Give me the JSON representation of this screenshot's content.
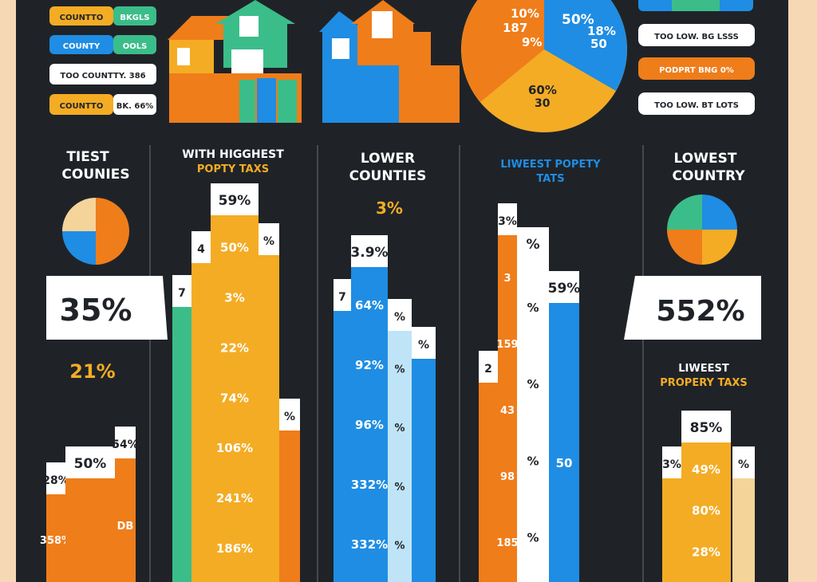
{
  "colors": {
    "background": "#1f2328",
    "frame": "#f6d9b4",
    "orange": "#ef7d1a",
    "yellow": "#f4ac24",
    "blue": "#1f8de3",
    "light_blue": "#bfe4f7",
    "teal": "#3bbd8a",
    "cream": "#f5d49a",
    "white": "#ffffff",
    "dark_text": "#1f2328"
  },
  "legend_left": [
    {
      "tag": "COUNTTO",
      "label": "BKGLS",
      "tag_color": "#f4ac24"
    },
    {
      "tag": "COUNTY",
      "label": "OOLS",
      "tag_color": "#1f8de3"
    },
    {
      "tag": "",
      "label": "TOO COUNTTY. 386",
      "tag_color": "#ffffff"
    },
    {
      "tag": "COUNTTO",
      "label": "BK. 66%",
      "tag_color": "#f4ac24"
    }
  ],
  "legend_right": [
    {
      "label": "TOO LOW. BG LSSS",
      "fill": "#ffffff"
    },
    {
      "label": "PODPRT BNG 0%",
      "fill": "#ef7d1a"
    },
    {
      "label": "TOO LOW. BT LOTS",
      "fill": "#ffffff"
    }
  ],
  "pie_labels": [
    "10%",
    "187",
    "9%",
    "50%",
    "18%",
    "50",
    "60%",
    "30"
  ],
  "chart_data": [
    {
      "type": "bar",
      "title": "TIEST COUNIES",
      "callout": "35%",
      "accent_label": "21%",
      "pie_values": [
        25,
        25,
        25,
        25
      ],
      "bars": [
        {
          "labels": [
            "28%",
            "358%"
          ],
          "color": "#ef7d1a",
          "value": 30
        },
        {
          "labels": [
            "50%"
          ],
          "color": "#ef7d1a",
          "value": 34
        },
        {
          "labels": [
            "54%",
            "DB"
          ],
          "color": "#ef7d1a",
          "value": 39
        }
      ]
    },
    {
      "type": "bar",
      "title": "WITH HIGGHEST",
      "subtitle": "POPTY TAXS",
      "bars": [
        {
          "labels": [
            "7"
          ],
          "color": "#3bbd8a",
          "value": 77
        },
        {
          "labels": [
            "4"
          ],
          "color": "#f4ac24",
          "value": 88
        },
        {
          "labels": [
            "59%",
            "50%",
            "3%",
            "22%",
            "74%",
            "106%",
            "241%",
            "186%"
          ],
          "color": "#f4ac24",
          "value": 100
        },
        {
          "labels": [
            "%"
          ],
          "color": "#f4ac24",
          "value": 90
        },
        {
          "labels": [
            "%"
          ],
          "color": "#ef7d1a",
          "value": 46
        }
      ]
    },
    {
      "type": "bar",
      "title": "LOWER COUNTIES",
      "accent_label": "3%",
      "bars": [
        {
          "labels": [
            "7"
          ],
          "color": "#1f8de3",
          "value": 76
        },
        {
          "labels": [
            "3.9%",
            "64%",
            "92%",
            "96%",
            "332%",
            "332%"
          ],
          "color": "#1f8de3",
          "value": 87
        },
        {
          "labels": [
            "%",
            "%",
            "%",
            "%",
            "%"
          ],
          "color": "#bfe4f7",
          "value": 71
        },
        {
          "labels": [
            "%"
          ],
          "color": "#1f8de3",
          "value": 64
        }
      ]
    },
    {
      "type": "bar",
      "title": "LIWEEST POPETY TATS",
      "bars": [
        {
          "labels": [
            "2"
          ],
          "color": "#ef7d1a",
          "value": 58
        },
        {
          "labels": [
            "3%",
            "3",
            "159",
            "43",
            "98",
            "185"
          ],
          "color": "#ef7d1a",
          "value": 95
        },
        {
          "labels": [
            "%",
            "%",
            "%",
            "%",
            "%"
          ],
          "color": "#ffffff",
          "value": 89
        },
        {
          "labels": [
            "59%",
            "50"
          ],
          "color": "#1f8de3",
          "value": 78
        }
      ]
    },
    {
      "type": "bar",
      "title": "LOWEST COUNTRY",
      "callout": "552%",
      "subtitle": "LIWEEST PROPERY TAXS",
      "pie_values": [
        25,
        25,
        25,
        25
      ],
      "bars": [
        {
          "labels": [
            "3%"
          ],
          "color": "#f4ac24",
          "value": 34
        },
        {
          "labels": [
            "85%",
            "49%",
            "80%",
            "28%"
          ],
          "color": "#f4ac24",
          "value": 43
        },
        {
          "labels": [
            "%"
          ],
          "color": "#f5d49a",
          "value": 34
        }
      ]
    }
  ]
}
